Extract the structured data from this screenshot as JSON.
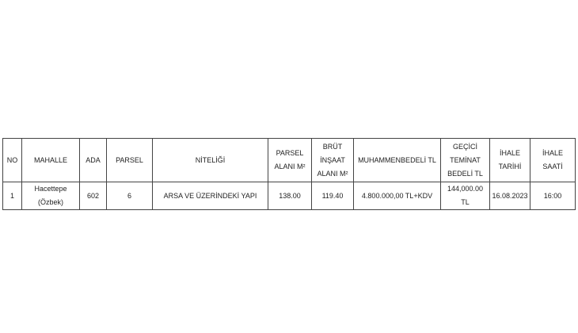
{
  "table": {
    "headers": [
      "NO",
      "MAHALLE",
      "ADA",
      "PARSEL",
      "NİTELİĞİ",
      "PARSEL\nALANI M²",
      "BRÜT\nİNŞAAT\nALANI M²",
      "MUHAMMENBEDELİ TL",
      "GEÇİCİ\nTEMİNAT\nBEDELİ TL",
      "İHALE\nTARİHİ",
      "İHALE\nSAATİ"
    ],
    "rows": [
      [
        "1",
        "Hacettepe (Özbek)",
        "602",
        "6",
        "ARSA VE ÜZERİNDEKİ YAPI",
        "138.00",
        "119.40",
        "4.800.000,00 TL+KDV",
        "144,000.00 TL",
        "16.08.2023",
        "16:00"
      ]
    ]
  }
}
